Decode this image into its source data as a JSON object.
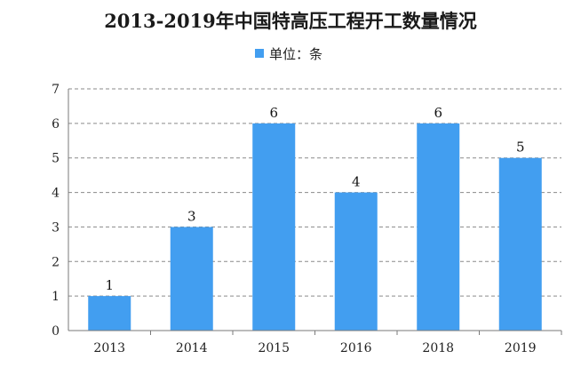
{
  "title": "2013-2019年中国特高压工程开工数量情况",
  "legend": {
    "label": "单位：条",
    "color": "#429ef0"
  },
  "colors": {
    "bar": "#429ef0",
    "grid": "#8a8a8a",
    "axis": "#7a7a7a"
  },
  "chart_data": {
    "type": "bar",
    "categories": [
      "2013",
      "2014",
      "2015",
      "2016",
      "2018",
      "2019"
    ],
    "series": [
      {
        "name": "单位：条",
        "values": [
          1,
          3,
          6,
          4,
          6,
          5
        ]
      }
    ],
    "data_labels": [
      "1",
      "3",
      "6",
      "4",
      "6",
      "5"
    ],
    "ylim": [
      0,
      7
    ],
    "yticks": [
      0,
      1,
      2,
      3,
      4,
      5,
      6,
      7
    ],
    "xlabel": "",
    "ylabel": "",
    "grid": true,
    "legend_position": "top-center"
  }
}
